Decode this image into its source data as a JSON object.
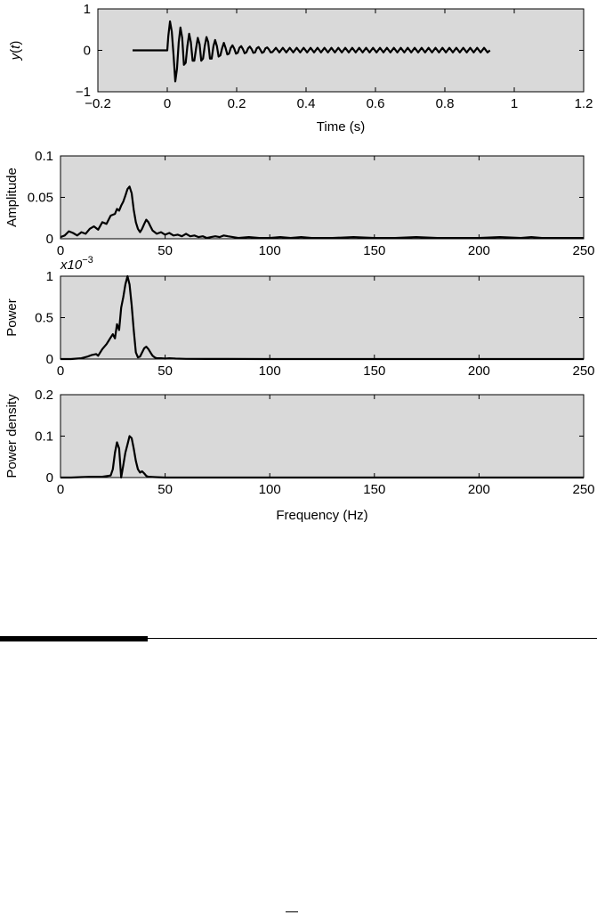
{
  "colors": {
    "panel": "#d9d9d9",
    "line": "#000000",
    "background": "#ffffff"
  },
  "chart_data": [
    {
      "type": "line",
      "title": "",
      "xlabel": "Time (s)",
      "ylabel_main": "y",
      "ylabel_paren_open": "(",
      "ylabel_var": "t",
      "ylabel_paren_close": ")",
      "xlim": [
        -0.2,
        1.2
      ],
      "ylim": [
        -1,
        1
      ],
      "xticks": [
        -0.2,
        0,
        0.2,
        0.4,
        0.6,
        0.8,
        1,
        1.2
      ],
      "xtick_labels": [
        "−0.2",
        "0",
        "0.2",
        "0.4",
        "0.6",
        "0.8",
        "1",
        "1.2"
      ],
      "yticks": [
        -1,
        0,
        1
      ],
      "ytick_labels": [
        "−1",
        "0",
        "1"
      ],
      "grid": false,
      "series": [
        {
          "x": [
            -0.1,
            -0.08,
            -0.06,
            -0.04,
            -0.02,
            0,
            0.003,
            0.008,
            0.013,
            0.018,
            0.023,
            0.028,
            0.033,
            0.038,
            0.043,
            0.048,
            0.053,
            0.058,
            0.063,
            0.068,
            0.073,
            0.078,
            0.083,
            0.088,
            0.093,
            0.098,
            0.103,
            0.108,
            0.113,
            0.118,
            0.123,
            0.128,
            0.133,
            0.138,
            0.143,
            0.148,
            0.153,
            0.158,
            0.163,
            0.168,
            0.173,
            0.178,
            0.183,
            0.188,
            0.193,
            0.198,
            0.203,
            0.208,
            0.213,
            0.218,
            0.223,
            0.228,
            0.233,
            0.238,
            0.243,
            0.248,
            0.253,
            0.258,
            0.263,
            0.268,
            0.273,
            0.278,
            0.283,
            0.288,
            0.293,
            0.298,
            0.303,
            0.313,
            0.323,
            0.333,
            0.343,
            0.353,
            0.363,
            0.373,
            0.383,
            0.393,
            0.403,
            0.413,
            0.423,
            0.433,
            0.443,
            0.453,
            0.463,
            0.473,
            0.483,
            0.493,
            0.503,
            0.513,
            0.523,
            0.533,
            0.543,
            0.553,
            0.563,
            0.573,
            0.583,
            0.593,
            0.603,
            0.613,
            0.623,
            0.633,
            0.643,
            0.653,
            0.663,
            0.673,
            0.683,
            0.693,
            0.703,
            0.713,
            0.723,
            0.733,
            0.743,
            0.753,
            0.763,
            0.773,
            0.783,
            0.793,
            0.803,
            0.813,
            0.823,
            0.833,
            0.843,
            0.853,
            0.863,
            0.873,
            0.883,
            0.893,
            0.903,
            0.913,
            0.923,
            0.93
          ],
          "y": [
            0,
            0,
            0,
            0,
            0,
            0,
            0.35,
            0.7,
            0.45,
            -0.1,
            -0.75,
            -0.45,
            0.2,
            0.55,
            0.3,
            -0.35,
            -0.3,
            0.1,
            0.4,
            0.2,
            -0.25,
            -0.25,
            0.05,
            0.3,
            0.15,
            -0.25,
            -0.2,
            0.1,
            0.32,
            0.2,
            -0.2,
            -0.2,
            0.1,
            0.25,
            0.1,
            -0.15,
            -0.12,
            0.05,
            0.18,
            0.06,
            -0.1,
            -0.08,
            0.06,
            0.12,
            0.04,
            -0.08,
            -0.06,
            0.06,
            0.1,
            0.03,
            -0.07,
            -0.05,
            0.05,
            0.09,
            0.03,
            -0.06,
            -0.05,
            0.05,
            0.08,
            0.02,
            -0.06,
            -0.04,
            0.05,
            0.07,
            0.02,
            -0.05,
            -0.04,
            0.06,
            -0.05,
            0.06,
            -0.05,
            0.06,
            -0.05,
            0.06,
            -0.05,
            0.06,
            -0.05,
            0.06,
            -0.05,
            0.06,
            -0.05,
            0.06,
            -0.05,
            0.06,
            -0.05,
            0.06,
            -0.05,
            0.06,
            -0.05,
            0.06,
            -0.05,
            0.06,
            -0.05,
            0.06,
            -0.05,
            0.06,
            -0.05,
            0.06,
            -0.05,
            0.06,
            -0.05,
            0.06,
            -0.05,
            0.06,
            -0.05,
            0.06,
            -0.05,
            0.06,
            -0.05,
            0.06,
            -0.05,
            0.06,
            -0.05,
            0.06,
            -0.05,
            0.06,
            -0.05,
            0.06,
            -0.05,
            0.06,
            -0.05,
            0.06,
            -0.05,
            0.06,
            -0.05,
            0.06,
            -0.05,
            0.06,
            -0.05,
            0.0
          ]
        }
      ]
    },
    {
      "type": "line",
      "title": "",
      "xlabel": "",
      "ylabel": "Amplitude",
      "xlim": [
        0,
        250
      ],
      "ylim": [
        0,
        0.1
      ],
      "xticks": [
        0,
        50,
        100,
        150,
        200,
        250
      ],
      "xtick_labels": [
        "0",
        "50",
        "100",
        "150",
        "200",
        "250"
      ],
      "yticks": [
        0,
        0.05,
        0.1
      ],
      "ytick_labels": [
        "0",
        "0.05",
        "0.1"
      ],
      "grid": false,
      "series": [
        {
          "x": [
            0,
            2,
            4,
            6,
            8,
            10,
            12,
            14,
            16,
            18,
            20,
            22,
            24,
            26,
            27,
            28,
            29,
            30,
            31,
            32,
            33,
            34,
            35,
            36,
            37,
            38,
            39,
            40,
            41,
            42,
            43,
            44,
            46,
            48,
            50,
            52,
            54,
            56,
            58,
            60,
            62,
            64,
            66,
            68,
            70,
            72,
            74,
            76,
            78,
            80,
            85,
            90,
            95,
            100,
            105,
            110,
            115,
            120,
            130,
            140,
            150,
            160,
            170,
            180,
            190,
            200,
            210,
            220,
            225,
            230,
            240,
            250
          ],
          "y": [
            0.002,
            0.004,
            0.009,
            0.007,
            0.004,
            0.008,
            0.006,
            0.012,
            0.015,
            0.011,
            0.02,
            0.018,
            0.028,
            0.03,
            0.036,
            0.034,
            0.04,
            0.045,
            0.052,
            0.06,
            0.063,
            0.055,
            0.035,
            0.02,
            0.012,
            0.008,
            0.012,
            0.018,
            0.023,
            0.02,
            0.015,
            0.01,
            0.006,
            0.008,
            0.005,
            0.007,
            0.004,
            0.005,
            0.003,
            0.006,
            0.003,
            0.004,
            0.002,
            0.003,
            0.001,
            0.002,
            0.003,
            0.002,
            0.004,
            0.003,
            0.001,
            0.002,
            0.001,
            0.001,
            0.002,
            0.001,
            0.002,
            0.001,
            0.001,
            0.002,
            0.001,
            0.001,
            0.002,
            0.001,
            0.001,
            0.001,
            0.002,
            0.001,
            0.002,
            0.001,
            0.001,
            0.001
          ]
        }
      ]
    },
    {
      "type": "line",
      "title": "",
      "xlabel": "",
      "ylabel": "Power",
      "scale_label_base": "x10",
      "scale_label_exponent": "−3",
      "xlim": [
        0,
        250
      ],
      "ylim": [
        0,
        1
      ],
      "xticks": [
        0,
        50,
        100,
        150,
        200,
        250
      ],
      "xtick_labels": [
        "0",
        "50",
        "100",
        "150",
        "200",
        "250"
      ],
      "yticks": [
        0,
        0.5,
        1
      ],
      "ytick_labels": [
        "0",
        "0.5",
        "1"
      ],
      "grid": false,
      "series": [
        {
          "x": [
            0,
            5,
            10,
            13,
            15,
            17,
            18,
            20,
            22,
            23,
            24,
            25,
            26,
            27,
            28,
            29,
            30,
            31,
            32,
            33,
            34,
            35,
            36,
            37,
            38,
            39,
            40,
            41,
            42,
            43,
            44,
            45,
            46,
            48,
            50,
            52,
            55,
            60,
            70,
            80,
            100,
            150,
            200,
            250
          ],
          "y": [
            0,
            0,
            0.01,
            0.03,
            0.05,
            0.06,
            0.04,
            0.12,
            0.18,
            0.22,
            0.26,
            0.3,
            0.25,
            0.42,
            0.35,
            0.62,
            0.75,
            0.9,
            1.0,
            0.9,
            0.65,
            0.35,
            0.08,
            0.02,
            0.03,
            0.08,
            0.13,
            0.15,
            0.12,
            0.08,
            0.04,
            0.02,
            0.01,
            0.01,
            0.005,
            0.01,
            0.005,
            0.002,
            0.001,
            0.001,
            0,
            0,
            0,
            0
          ]
        }
      ]
    },
    {
      "type": "line",
      "title": "",
      "xlabel": "Frequency (Hz)",
      "ylabel": "Power density",
      "xlim": [
        0,
        250
      ],
      "ylim": [
        0,
        0.2
      ],
      "xticks": [
        0,
        50,
        100,
        150,
        200,
        250
      ],
      "xtick_labels": [
        "0",
        "50",
        "100",
        "150",
        "200",
        "250"
      ],
      "yticks": [
        0,
        0.1,
        0.2
      ],
      "ytick_labels": [
        "0",
        "0.1",
        "0.2"
      ],
      "grid": false,
      "series": [
        {
          "x": [
            0,
            5,
            10,
            15,
            20,
            24,
            25,
            26,
            27,
            28,
            29,
            30,
            31,
            32,
            33,
            34,
            35,
            36,
            37,
            38,
            39,
            40,
            41,
            42,
            45,
            50,
            100,
            150,
            200,
            250
          ],
          "y": [
            0,
            0,
            0.001,
            0.002,
            0.002,
            0.005,
            0.02,
            0.06,
            0.085,
            0.07,
            0.0,
            0.03,
            0.06,
            0.08,
            0.1,
            0.095,
            0.07,
            0.04,
            0.02,
            0.012,
            0.015,
            0.01,
            0.004,
            0.002,
            0.001,
            0,
            0,
            0,
            0,
            0
          ]
        }
      ]
    }
  ]
}
